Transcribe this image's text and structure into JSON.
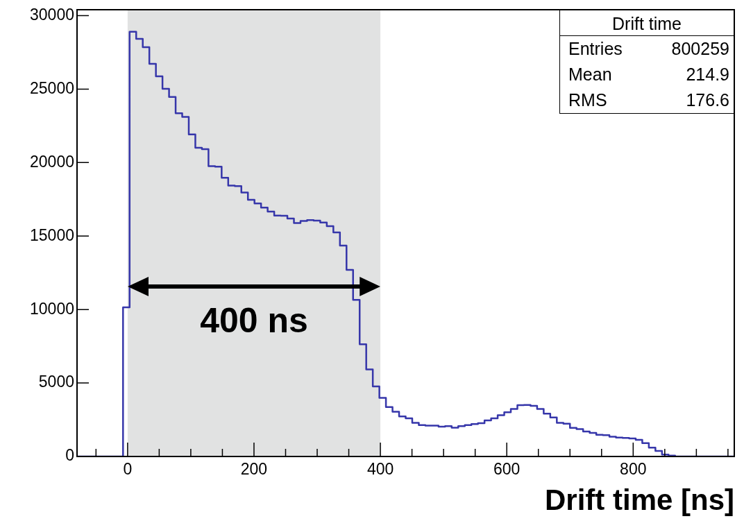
{
  "chart_data": {
    "type": "histogram",
    "xlabel": "Drift time [ns]",
    "bins": [
      -80,
      -69.6,
      -59.2,
      -48.8,
      -38.4,
      -28,
      -17.6,
      -7.2,
      3.2,
      13.6,
      24,
      34.4,
      44.8,
      55.2,
      65.6,
      76,
      86.4,
      96.8,
      107.2,
      117.6,
      128,
      138.4,
      148.8,
      159.2,
      169.6,
      180,
      190.4,
      200.8,
      211.2,
      221.6,
      232,
      242.4,
      252.8,
      263.2,
      273.6,
      284,
      294.4,
      304.8,
      315.2,
      325.6,
      336,
      346.4,
      356.8,
      367.2,
      377.6,
      388,
      398.4,
      408.8,
      419.2,
      429.6,
      440,
      450.4,
      460.8,
      471.2,
      481.6,
      492,
      502.4,
      512.8,
      523.2,
      533.6,
      544,
      554.4,
      564.8,
      575.2,
      585.6,
      596,
      606.4,
      616.8,
      627.2,
      637.6,
      648,
      658.4,
      668.8,
      679.2,
      689.6,
      700,
      710.4,
      720.8,
      731.2,
      741.6,
      752,
      762.4,
      772.8,
      783.2,
      793.6,
      804,
      814.4,
      824.8,
      835.2,
      845.6,
      856,
      866.4,
      876.8,
      887.2,
      897.6,
      908,
      918.4,
      928.8,
      939.2,
      949.6,
      960
    ],
    "values": [
      0,
      0,
      0,
      0,
      0,
      0,
      0,
      10150,
      28900,
      28420,
      27850,
      26720,
      25870,
      25020,
      24460,
      23360,
      23110,
      21910,
      21010,
      20910,
      19750,
      19720,
      18970,
      18430,
      18400,
      17960,
      17460,
      17220,
      16940,
      16660,
      16390,
      16380,
      16190,
      15890,
      16030,
      16090,
      16050,
      15920,
      15670,
      15250,
      14350,
      12700,
      10660,
      7640,
      5920,
      4770,
      3990,
      3360,
      3050,
      2730,
      2600,
      2290,
      2140,
      2100,
      2100,
      2030,
      2060,
      1960,
      2070,
      2140,
      2210,
      2260,
      2450,
      2600,
      2810,
      3010,
      3230,
      3490,
      3500,
      3450,
      3230,
      2920,
      2650,
      2290,
      2230,
      1950,
      1870,
      1700,
      1600,
      1470,
      1450,
      1350,
      1290,
      1260,
      1230,
      1130,
      910,
      600,
      380,
      130,
      60,
      0,
      0,
      0,
      0,
      0,
      0,
      0,
      0,
      0
    ],
    "color": "#3636aa",
    "xlim": [
      -80,
      960
    ],
    "xticks": [
      {
        "value": -50,
        "label": null
      },
      0,
      {
        "value": 50,
        "label": null
      },
      {
        "value": 100,
        "label": null
      },
      {
        "value": 150,
        "label": null
      },
      200,
      {
        "value": 250,
        "label": null
      },
      {
        "value": 300,
        "label": null
      },
      {
        "value": 350,
        "label": null
      },
      400,
      {
        "value": 450,
        "label": null
      },
      {
        "value": 500,
        "label": null
      },
      {
        "value": 550,
        "label": null
      },
      600,
      {
        "value": 650,
        "label": null
      },
      {
        "value": 700,
        "label": null
      },
      {
        "value": 750,
        "label": null
      },
      800,
      {
        "value": 850,
        "label": null
      },
      {
        "value": 900,
        "label": null
      },
      {
        "value": 950,
        "label": null
      }
    ],
    "ylim": [
      0,
      30400
    ],
    "yticks": [
      0,
      5000,
      10000,
      15000,
      20000,
      25000,
      30000
    ],
    "bands": [
      {
        "axis": "x",
        "from": 0,
        "to": 400,
        "color": "#e1e2e2",
        "label": "400 ns"
      }
    ],
    "annotations": [
      "Drift time",
      "Entries",
      "800259",
      "Mean",
      "214.9",
      "RMS",
      "176.6"
    ],
    "grid": false,
    "legend": false
  }
}
